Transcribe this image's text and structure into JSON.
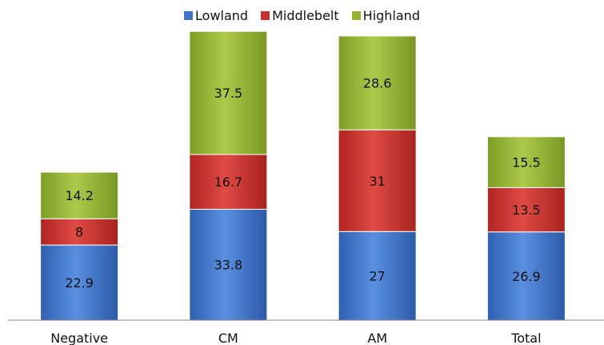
{
  "chart_data": {
    "type": "bar",
    "stacked": true,
    "categories": [
      "Negative",
      "CM",
      "AM",
      "Total"
    ],
    "series": [
      {
        "name": "Lowland",
        "values": [
          22.9,
          33.8,
          27,
          26.9
        ],
        "color": "#3d72c9"
      },
      {
        "name": "Middlebelt",
        "values": [
          8,
          16.7,
          31,
          13.5
        ],
        "color": "#c9302c"
      },
      {
        "name": "Highland",
        "values": [
          14.2,
          37.5,
          28.6,
          15.5
        ],
        "color": "#94b531"
      }
    ],
    "data_labels": [
      [
        "22.9",
        "33.8",
        "27",
        "26.9"
      ],
      [
        "8",
        "16.7",
        "31",
        "13.5"
      ],
      [
        "14.2",
        "37.5",
        "28.6",
        "15.5"
      ]
    ],
    "ylim": [
      0,
      90
    ],
    "legend_position": "top-center",
    "grid": false
  }
}
